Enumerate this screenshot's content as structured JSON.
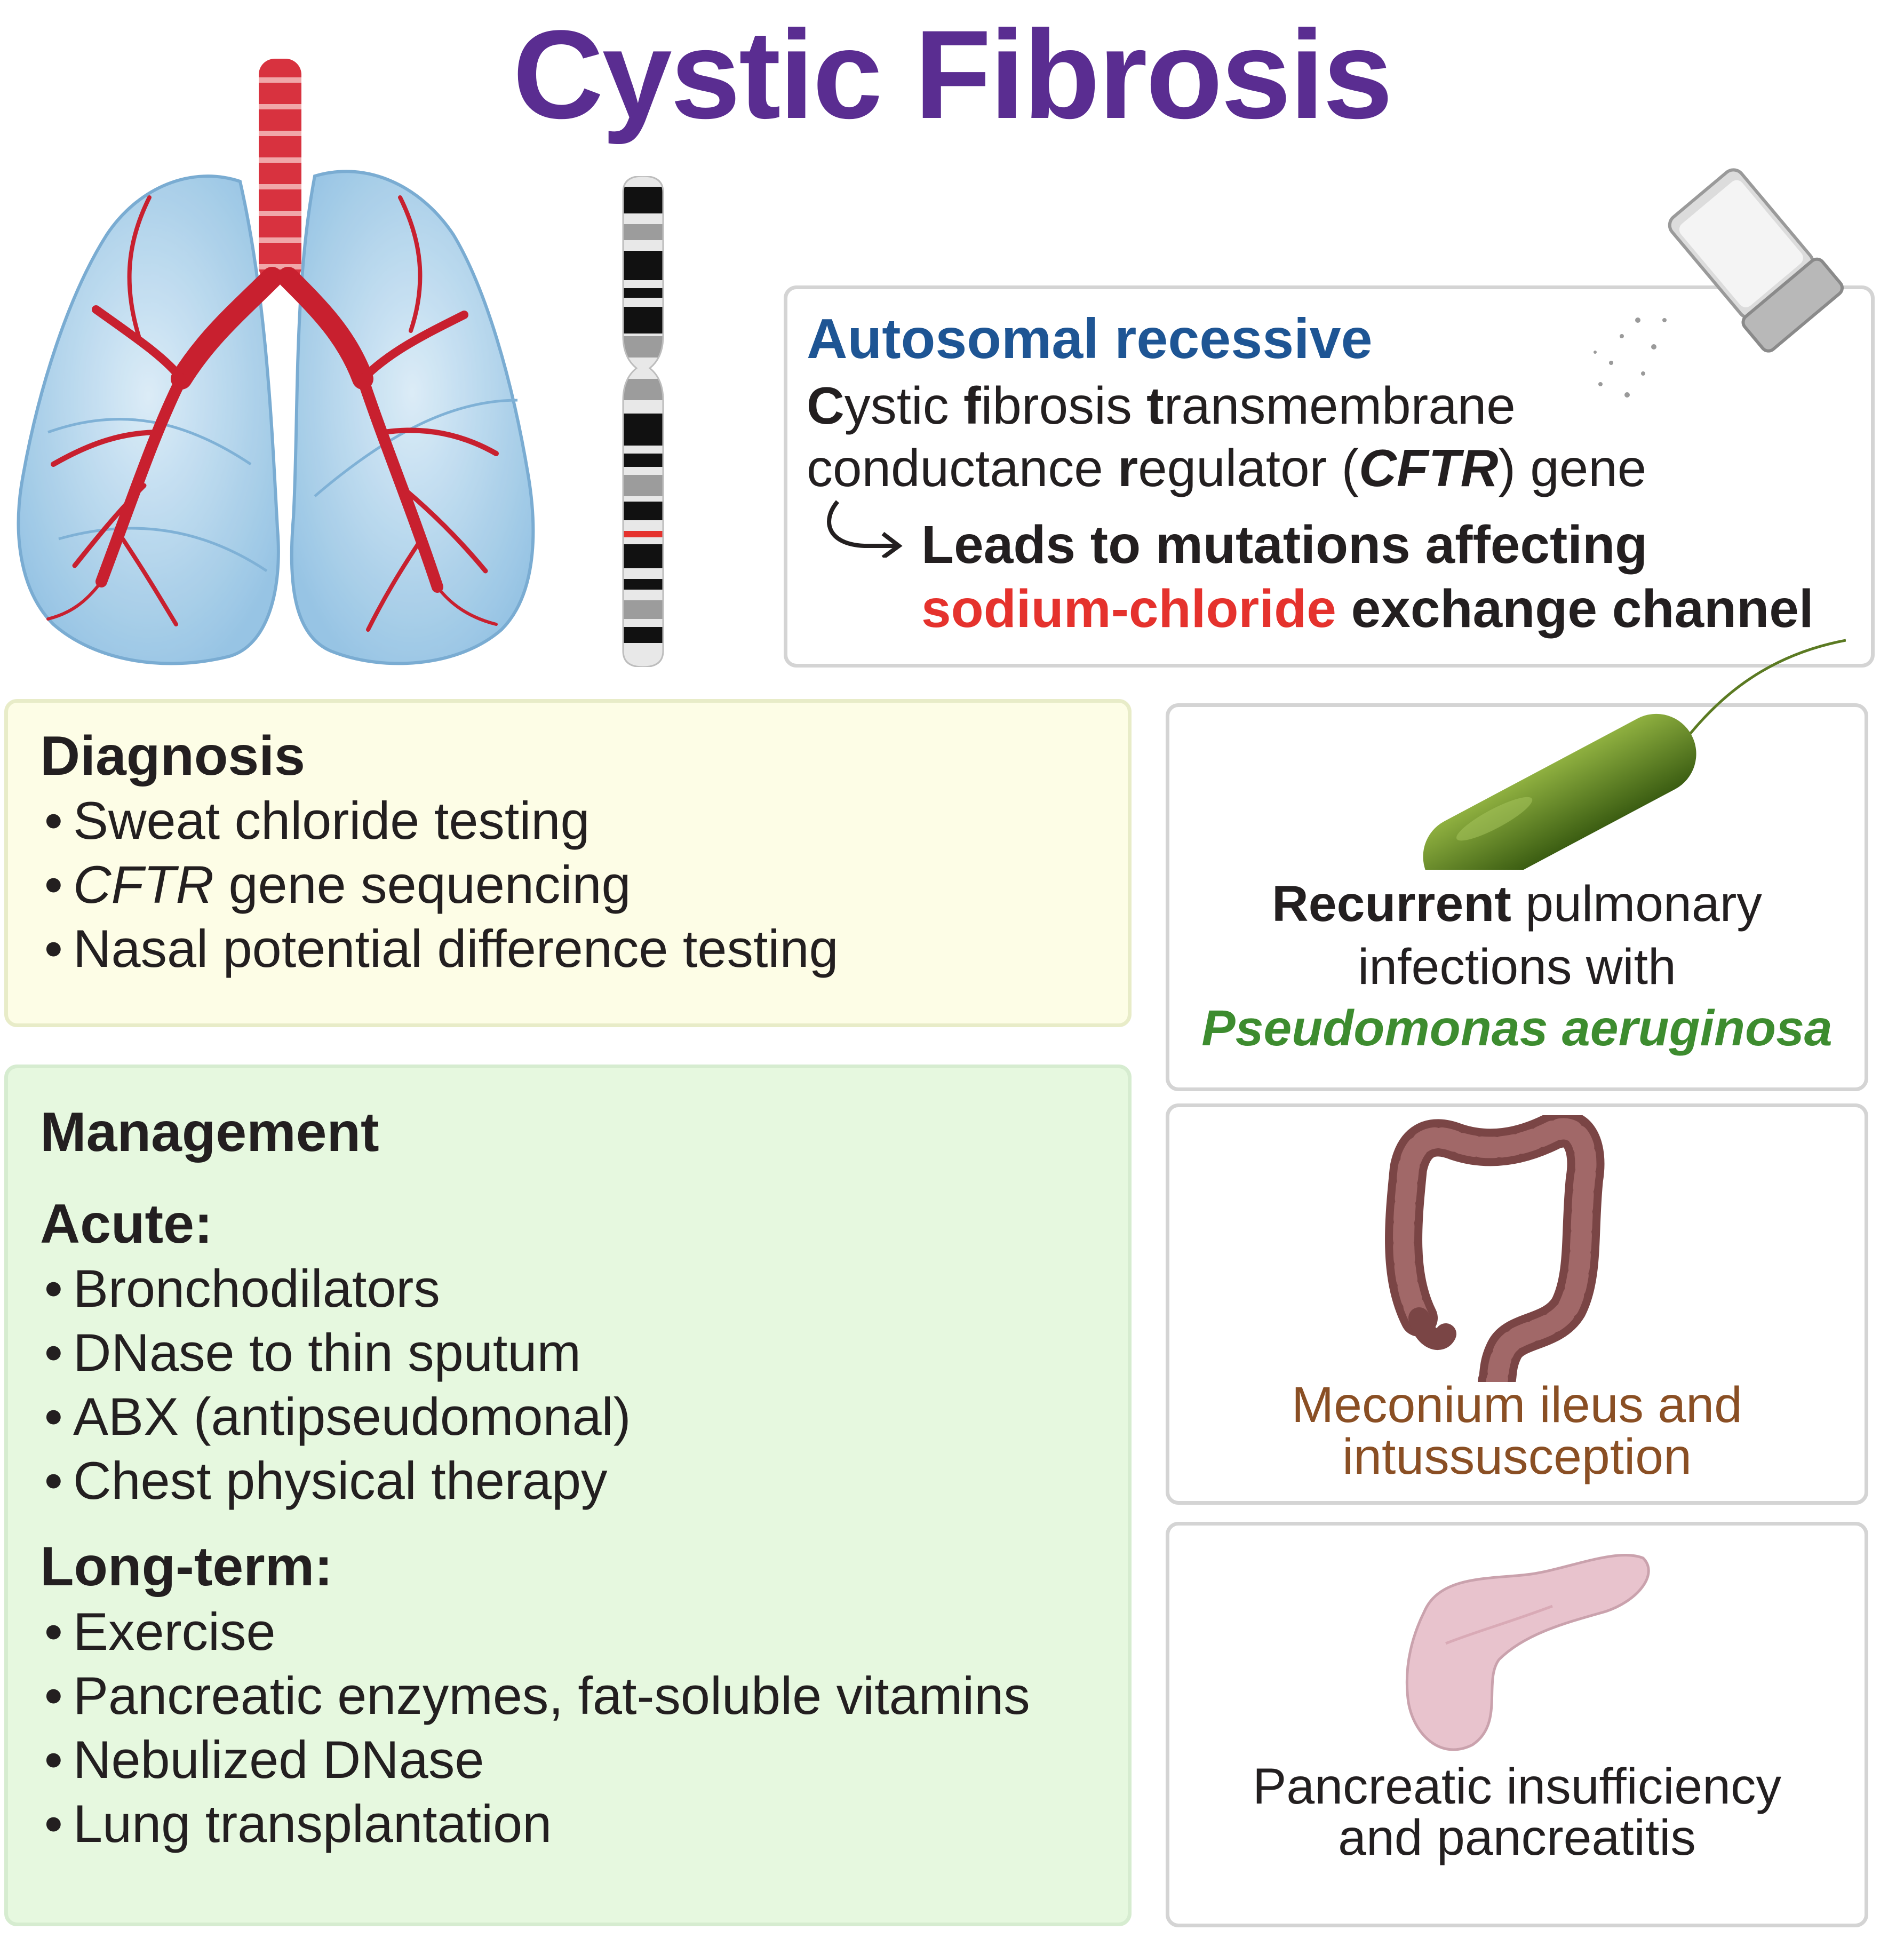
{
  "title": "Cystic Fibrosis",
  "colors": {
    "title": "#5a2d91",
    "inheritance": "#1e5594",
    "sodium": "#e5322d",
    "pseudomonas": "#3d8c2f",
    "meconium": "#8a4f24",
    "diagnosis_bg": "#fdfde6",
    "management_bg": "#e6f8df",
    "lung": "#a9cfe9",
    "bronchi": "#c8202f"
  },
  "icons": {
    "lungs": "lungs-icon",
    "chromosome": "chromosome-icon",
    "salt": "salt-shaker-icon",
    "bacterium": "bacterium-icon",
    "colon": "colon-icon",
    "pancreas": "pancreas-icon",
    "arrow": "curved-arrow-icon"
  },
  "genetics": {
    "inheritance": "Autosomal recessive",
    "gene_line1_parts": [
      "C",
      "ystic ",
      "f",
      "ibrosis ",
      "t",
      "ransmembrane"
    ],
    "gene_line2_parts": [
      "conductance ",
      "r",
      "egulator (",
      "CFTR",
      ") gene"
    ],
    "effect_line1": "Leads to mutations affecting",
    "effect_red": "sodium-chloride",
    "effect_rest": " exchange channel"
  },
  "diagnosis": {
    "heading": "Diagnosis",
    "item1": "Sweat chloride testing",
    "item2_italic": "CFTR",
    "item2_rest": " gene sequencing",
    "item3": "Nasal potential difference testing"
  },
  "management": {
    "heading": "Management",
    "acute_heading": "Acute:",
    "acute": [
      "Bronchodilators",
      "DNase to thin sputum",
      "ABX (antipseudomonal)",
      "Chest physical therapy"
    ],
    "longterm_heading": "Long-term:",
    "longterm": [
      "Exercise",
      "Pancreatic enzymes, fat-soluble vitamins",
      "Nebulized DNase",
      "Lung transplantation"
    ]
  },
  "infection": {
    "bold": "Recurrent",
    "line1_rest": " pulmonary",
    "line2": "infections with",
    "organism": "Pseudomonas aeruginosa"
  },
  "gi": {
    "line1": "Meconium ileus and",
    "line2": "intussusception"
  },
  "pancreas": {
    "line1": "Pancreatic insufficiency",
    "line2": "and pancreatitis"
  }
}
